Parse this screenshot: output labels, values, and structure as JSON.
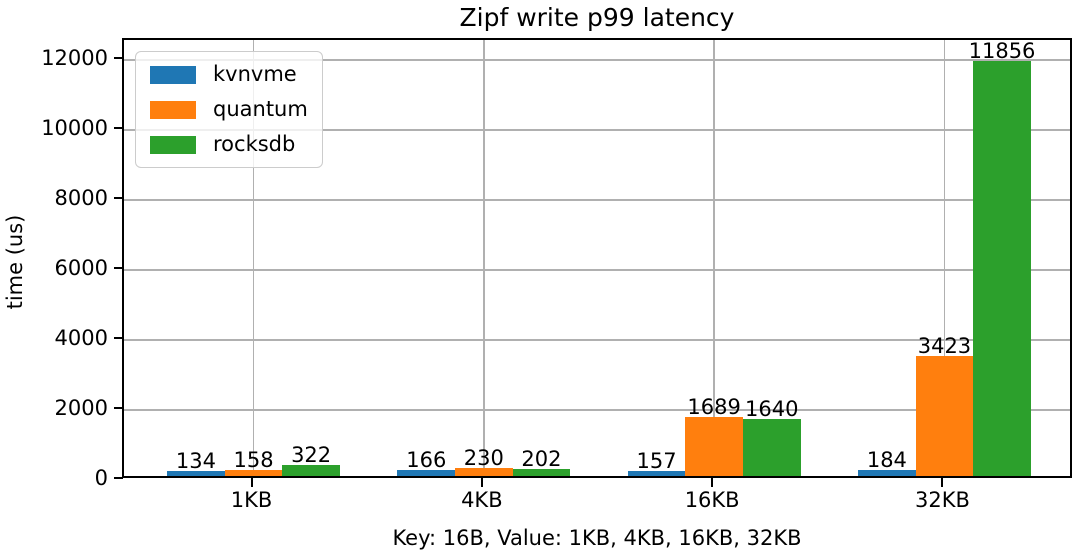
{
  "chart_data": {
    "type": "bar",
    "title": "Zipf write p99 latency",
    "ylabel": "time (us)",
    "xlabel": "Key: 16B, Value: 1KB, 4KB, 16KB, 32KB",
    "categories": [
      "1KB",
      "4KB",
      "16KB",
      "32KB"
    ],
    "series": [
      {
        "name": "kvnvme",
        "color": "#1f77b4",
        "values": [
          134,
          166,
          157,
          184
        ]
      },
      {
        "name": "quantum",
        "color": "#ff7f0e",
        "values": [
          158,
          230,
          1689,
          3423
        ]
      },
      {
        "name": "rocksdb",
        "color": "#2ca02c",
        "values": [
          322,
          202,
          1640,
          11856
        ]
      }
    ],
    "bar_value_labels": [
      [
        134,
        166,
        157,
        184
      ],
      [
        158,
        230,
        1689,
        3423
      ],
      [
        322,
        202,
        1640,
        11856
      ]
    ],
    "yticks": [
      0,
      2000,
      4000,
      6000,
      8000,
      10000,
      12000
    ],
    "ylim": [
      0,
      12571
    ],
    "grid": true,
    "legend_position": "upper left"
  },
  "colors": {
    "grid": "#b0b0b0",
    "spine": "#000000",
    "background": "#ffffff",
    "legend_border": "#cccccc"
  }
}
